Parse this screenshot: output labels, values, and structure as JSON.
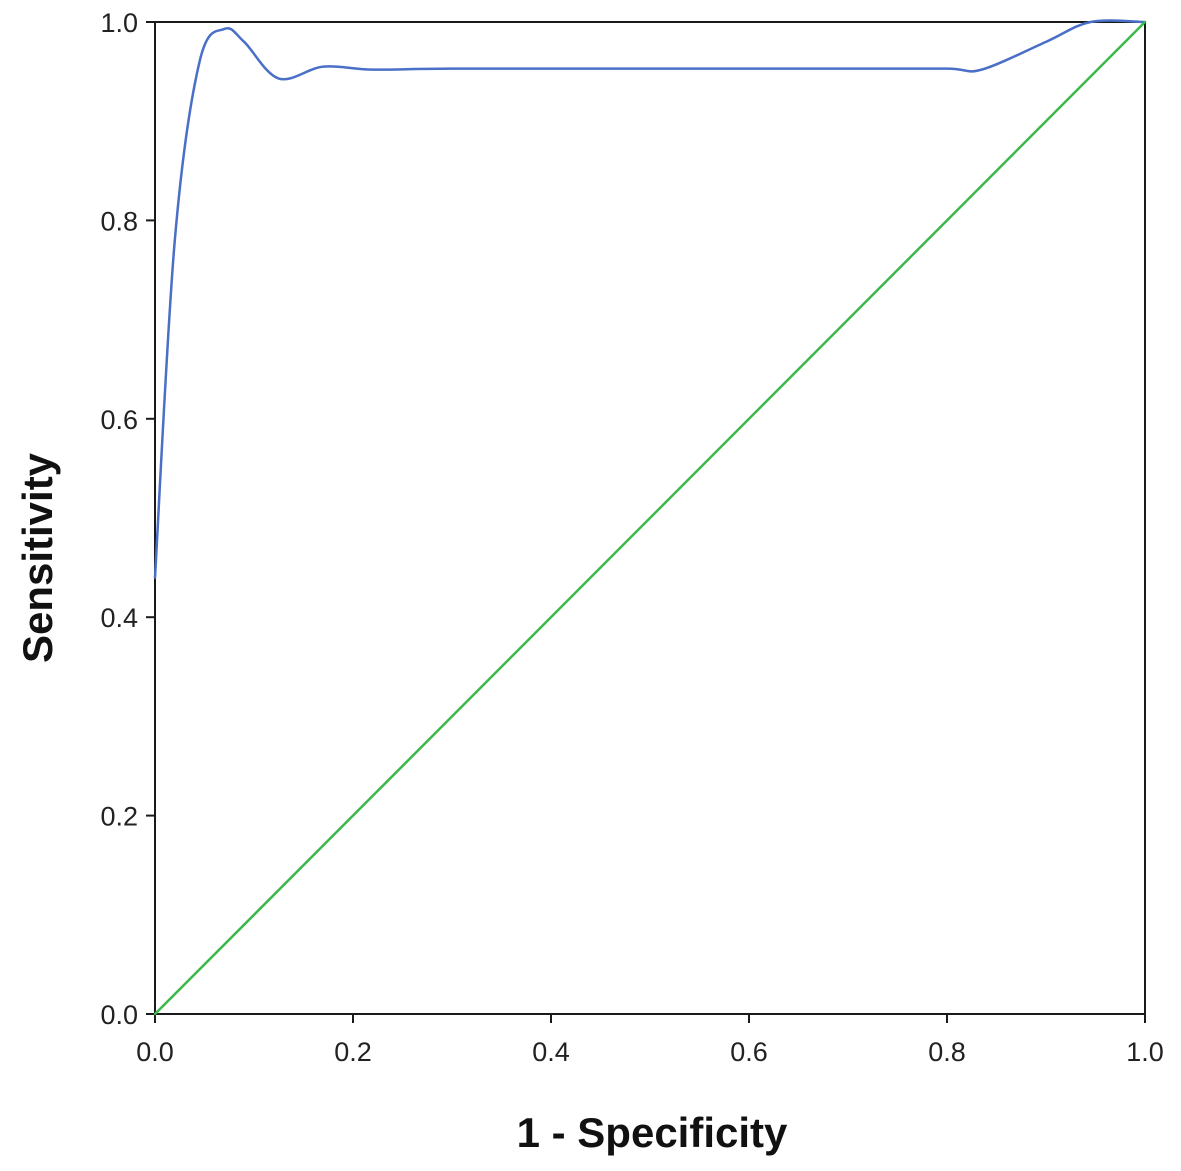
{
  "chart_data": {
    "type": "line",
    "title": "",
    "xlabel": "1 - Specificity",
    "ylabel": "Sensitivity",
    "xlim": [
      0.0,
      1.0
    ],
    "ylim": [
      0.0,
      1.0
    ],
    "xticks": [
      "0.0",
      "0.2",
      "0.4",
      "0.6",
      "0.8",
      "1.0"
    ],
    "yticks": [
      "0.0",
      "0.2",
      "0.4",
      "0.6",
      "0.8",
      "1.0"
    ],
    "grid": false,
    "legend": "none",
    "series": [
      {
        "color": "#4a6fc7",
        "smooth": true,
        "points": [
          [
            0.0,
            0.44
          ],
          [
            0.02,
            0.78
          ],
          [
            0.045,
            0.96
          ],
          [
            0.07,
            0.993
          ],
          [
            0.09,
            0.98
          ],
          [
            0.125,
            0.943
          ],
          [
            0.17,
            0.955
          ],
          [
            0.22,
            0.952
          ],
          [
            0.3,
            0.953
          ],
          [
            0.5,
            0.953
          ],
          [
            0.7,
            0.953
          ],
          [
            0.8,
            0.953
          ],
          [
            0.835,
            0.952
          ],
          [
            0.9,
            0.98
          ],
          [
            0.945,
            1.0
          ],
          [
            1.0,
            1.0
          ]
        ]
      },
      {
        "color": "#3cb84a",
        "smooth": false,
        "points": [
          [
            0.0,
            0.0
          ],
          [
            1.0,
            1.0
          ]
        ]
      }
    ]
  }
}
